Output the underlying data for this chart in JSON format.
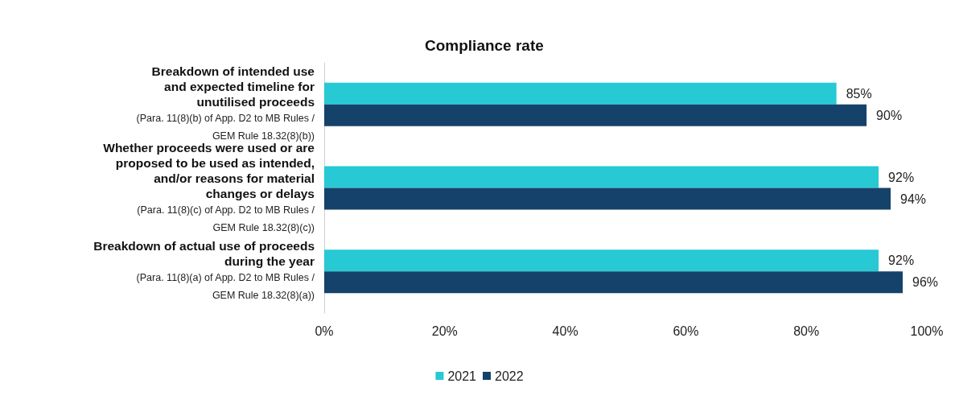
{
  "chart_data": {
    "type": "bar",
    "orientation": "horizontal",
    "title": "Compliance rate",
    "categories": [
      "Breakdown of intended use\nand expected timeline for\nunutilised proceeds\n\n(Para. 11(8)(b) of App. D2 to MB Rules /\nGEM Rule 18.32(8)(b))",
      "Whether proceeds were used or are\nproposed to be used as intended,\nand/or reasons for material\nchanges or delays\n\n(Para. 11(8)(c) of App. D2 to MB Rules /\nGEM Rule 18.32(8)(c))",
      "Breakdown of actual use of proceeds\nduring the year\n\n(Para. 11(8)(a) of App. D2 to MB Rules /\nGEM Rule 18.32(8)(a))"
    ],
    "series": [
      {
        "name": "2021",
        "color": "#26c9d4",
        "values": [
          85,
          92,
          92
        ],
        "value_labels": [
          "85%",
          "92%",
          "92%"
        ]
      },
      {
        "name": "2022",
        "color": "#15426a",
        "values": [
          90,
          94,
          96
        ],
        "value_labels": [
          "90%",
          "94%",
          "96%"
        ]
      }
    ],
    "xlim": [
      0,
      100
    ],
    "xticks": [
      {
        "value": 0,
        "label": "0%"
      },
      {
        "value": 20,
        "label": "20%"
      },
      {
        "value": 40,
        "label": "40%"
      },
      {
        "value": 60,
        "label": "60%"
      },
      {
        "value": 80,
        "label": "80%"
      },
      {
        "value": 100,
        "label": "100%"
      }
    ],
    "grid": false,
    "legend": "bottom"
  }
}
